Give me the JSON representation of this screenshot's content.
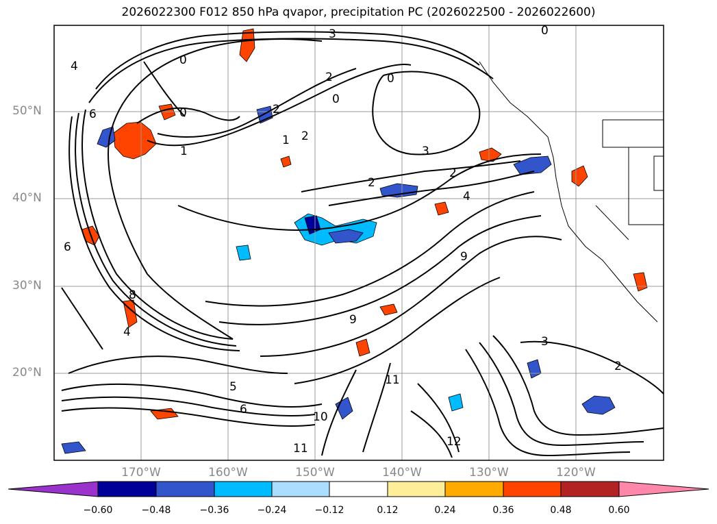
{
  "title": "2026022300 F012 850 hPa qvapor, precipitation PC (2026022500 - 2026022600)",
  "lat_labels": [
    "50°N",
    "40°N",
    "30°N",
    "20°N"
  ],
  "lon_labels": [
    "170°W",
    "160°W",
    "150°W",
    "140°W",
    "130°W",
    "120°W"
  ],
  "colorbar": {
    "tick_labels": [
      "−0.60",
      "−0.48",
      "−0.36",
      "−0.24",
      "−0.12",
      "0.12",
      "0.24",
      "0.36",
      "0.48",
      "0.60"
    ],
    "colors": [
      "#9933cc",
      "#000099",
      "#3355cc",
      "#00bbff",
      "#aaddff",
      "#ffffff",
      "#ffee99",
      "#ffaa00",
      "#ff4400",
      "#b22222",
      "#ff88aa"
    ]
  },
  "contour_labels": [
    "0",
    "0",
    "0",
    "0",
    "0",
    "1",
    "1",
    "2",
    "2",
    "2",
    "2",
    "2",
    "2",
    "3",
    "3",
    "3",
    "4",
    "4",
    "4",
    "5",
    "6",
    "6",
    "6",
    "8",
    "9",
    "9",
    "10",
    "11",
    "11",
    "12"
  ],
  "map": {
    "extent_lon": [
      -180,
      -110
    ],
    "extent_lat": [
      10,
      60
    ],
    "grid": true,
    "colors": {
      "contour": "#000000",
      "grid": "#999999",
      "axis_label": "#888888"
    }
  }
}
